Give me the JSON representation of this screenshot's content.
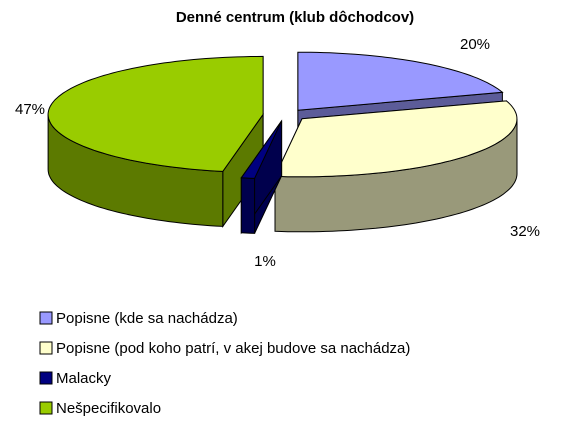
{
  "chart_data": {
    "type": "pie3d",
    "title": "Denné centrum (klub dôchodcov)",
    "categories": [
      "Popisne (kde sa nachádza)",
      "Popisne (pod koho patrí, v akej budove sa nachádza)",
      "Malacky",
      "Nešpecifikovalo"
    ],
    "values": [
      20,
      32,
      1,
      47
    ],
    "value_labels": [
      "20%",
      "32%",
      "1%",
      "47%"
    ],
    "colors": [
      "#9999ff",
      "#ffffcc",
      "#000080",
      "#99cc00"
    ],
    "legend": "bottom-left"
  }
}
